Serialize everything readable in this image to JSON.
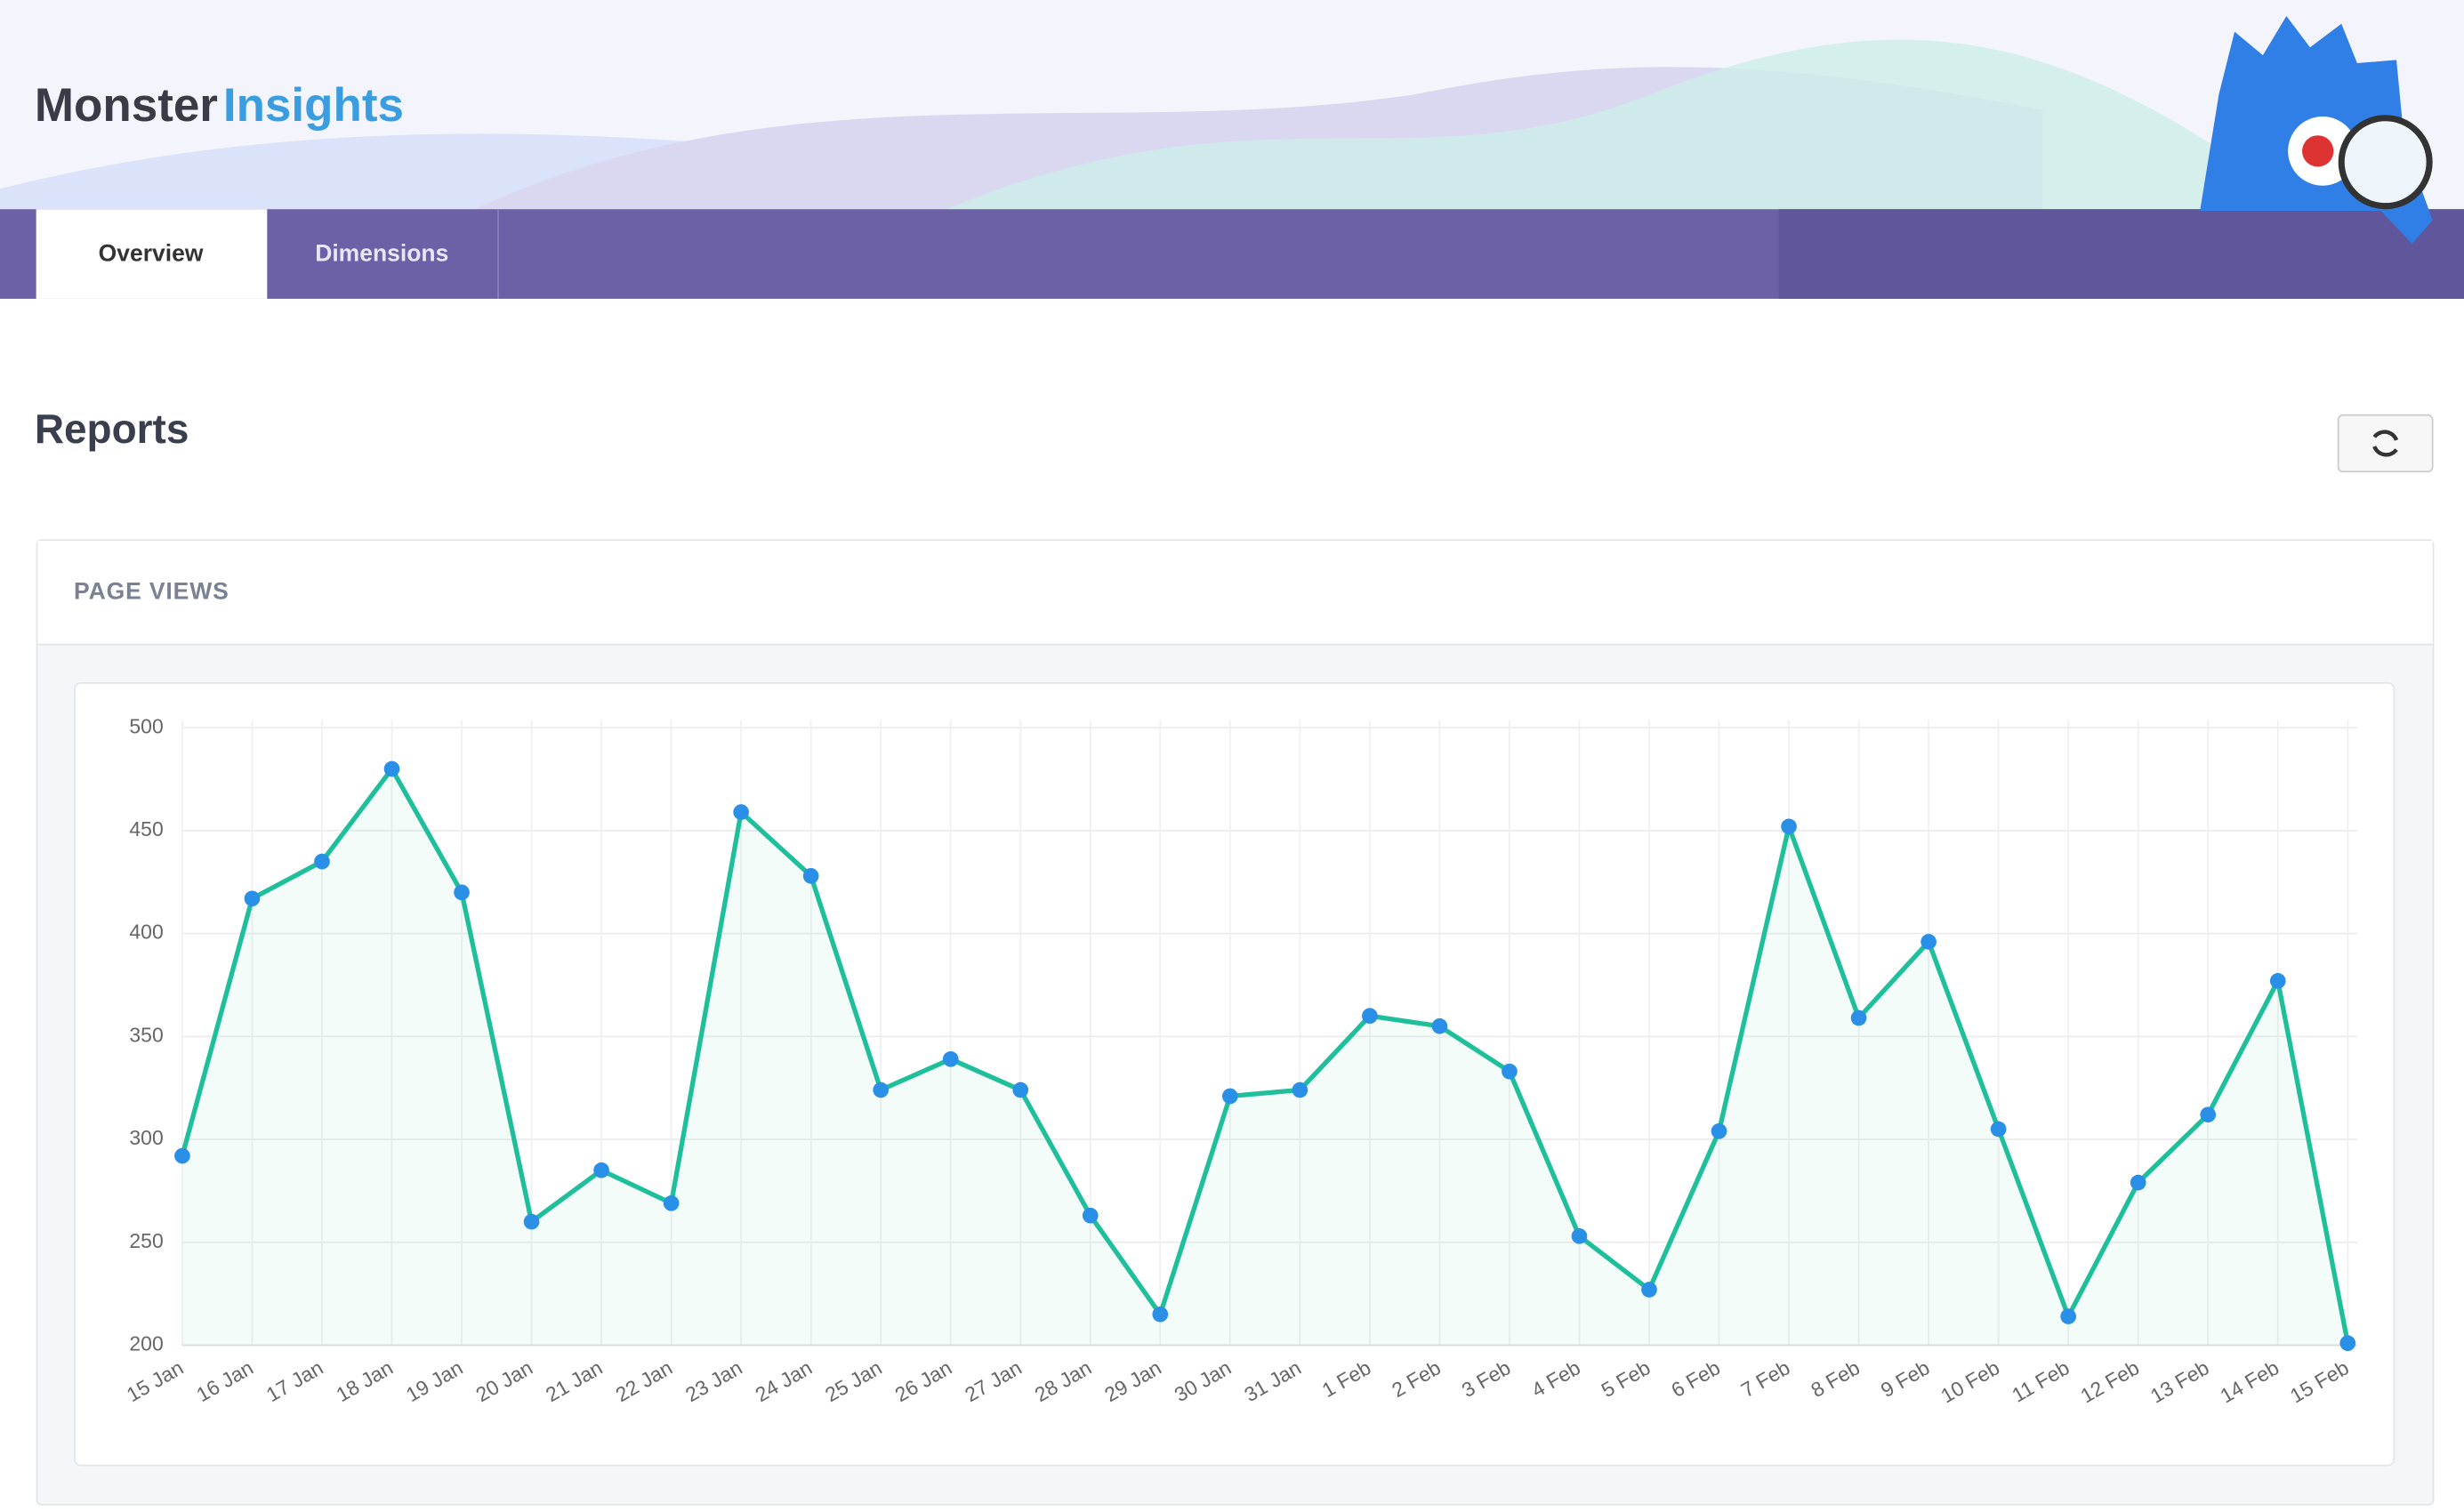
{
  "header": {
    "logo_part1": "Monster",
    "logo_part2": "Insights"
  },
  "tabs": [
    "Overview",
    "Dimensions"
  ],
  "page_title": "Reports",
  "chart_data": {
    "type": "line",
    "title": "PAGE VIEWS",
    "categories": [
      "15 Jan",
      "16 Jan",
      "17 Jan",
      "18 Jan",
      "19 Jan",
      "20 Jan",
      "21 Jan",
      "22 Jan",
      "23 Jan",
      "24 Jan",
      "25 Jan",
      "26 Jan",
      "27 Jan",
      "28 Jan",
      "29 Jan",
      "30 Jan",
      "31 Jan",
      "1 Feb",
      "2 Feb",
      "3 Feb",
      "4 Feb",
      "5 Feb",
      "6 Feb",
      "7 Feb",
      "8 Feb",
      "9 Feb",
      "10 Feb",
      "11 Feb",
      "12 Feb",
      "13 Feb",
      "14 Feb",
      "15 Feb"
    ],
    "series": [
      {
        "name": "Page Views",
        "color": "#1fbf9c",
        "point_color": "#2a8fe6",
        "values": [
          292,
          417,
          435,
          480,
          420,
          260,
          285,
          269,
          459,
          428,
          324,
          339,
          324,
          263,
          215,
          321,
          324,
          360,
          355,
          333,
          253,
          227,
          304,
          452,
          359,
          396,
          305,
          214,
          279,
          312,
          377,
          201
        ]
      }
    ],
    "ylim": [
      200,
      500
    ],
    "yticks": [
      200,
      250,
      300,
      350,
      400,
      450,
      500
    ],
    "grid": true
  }
}
